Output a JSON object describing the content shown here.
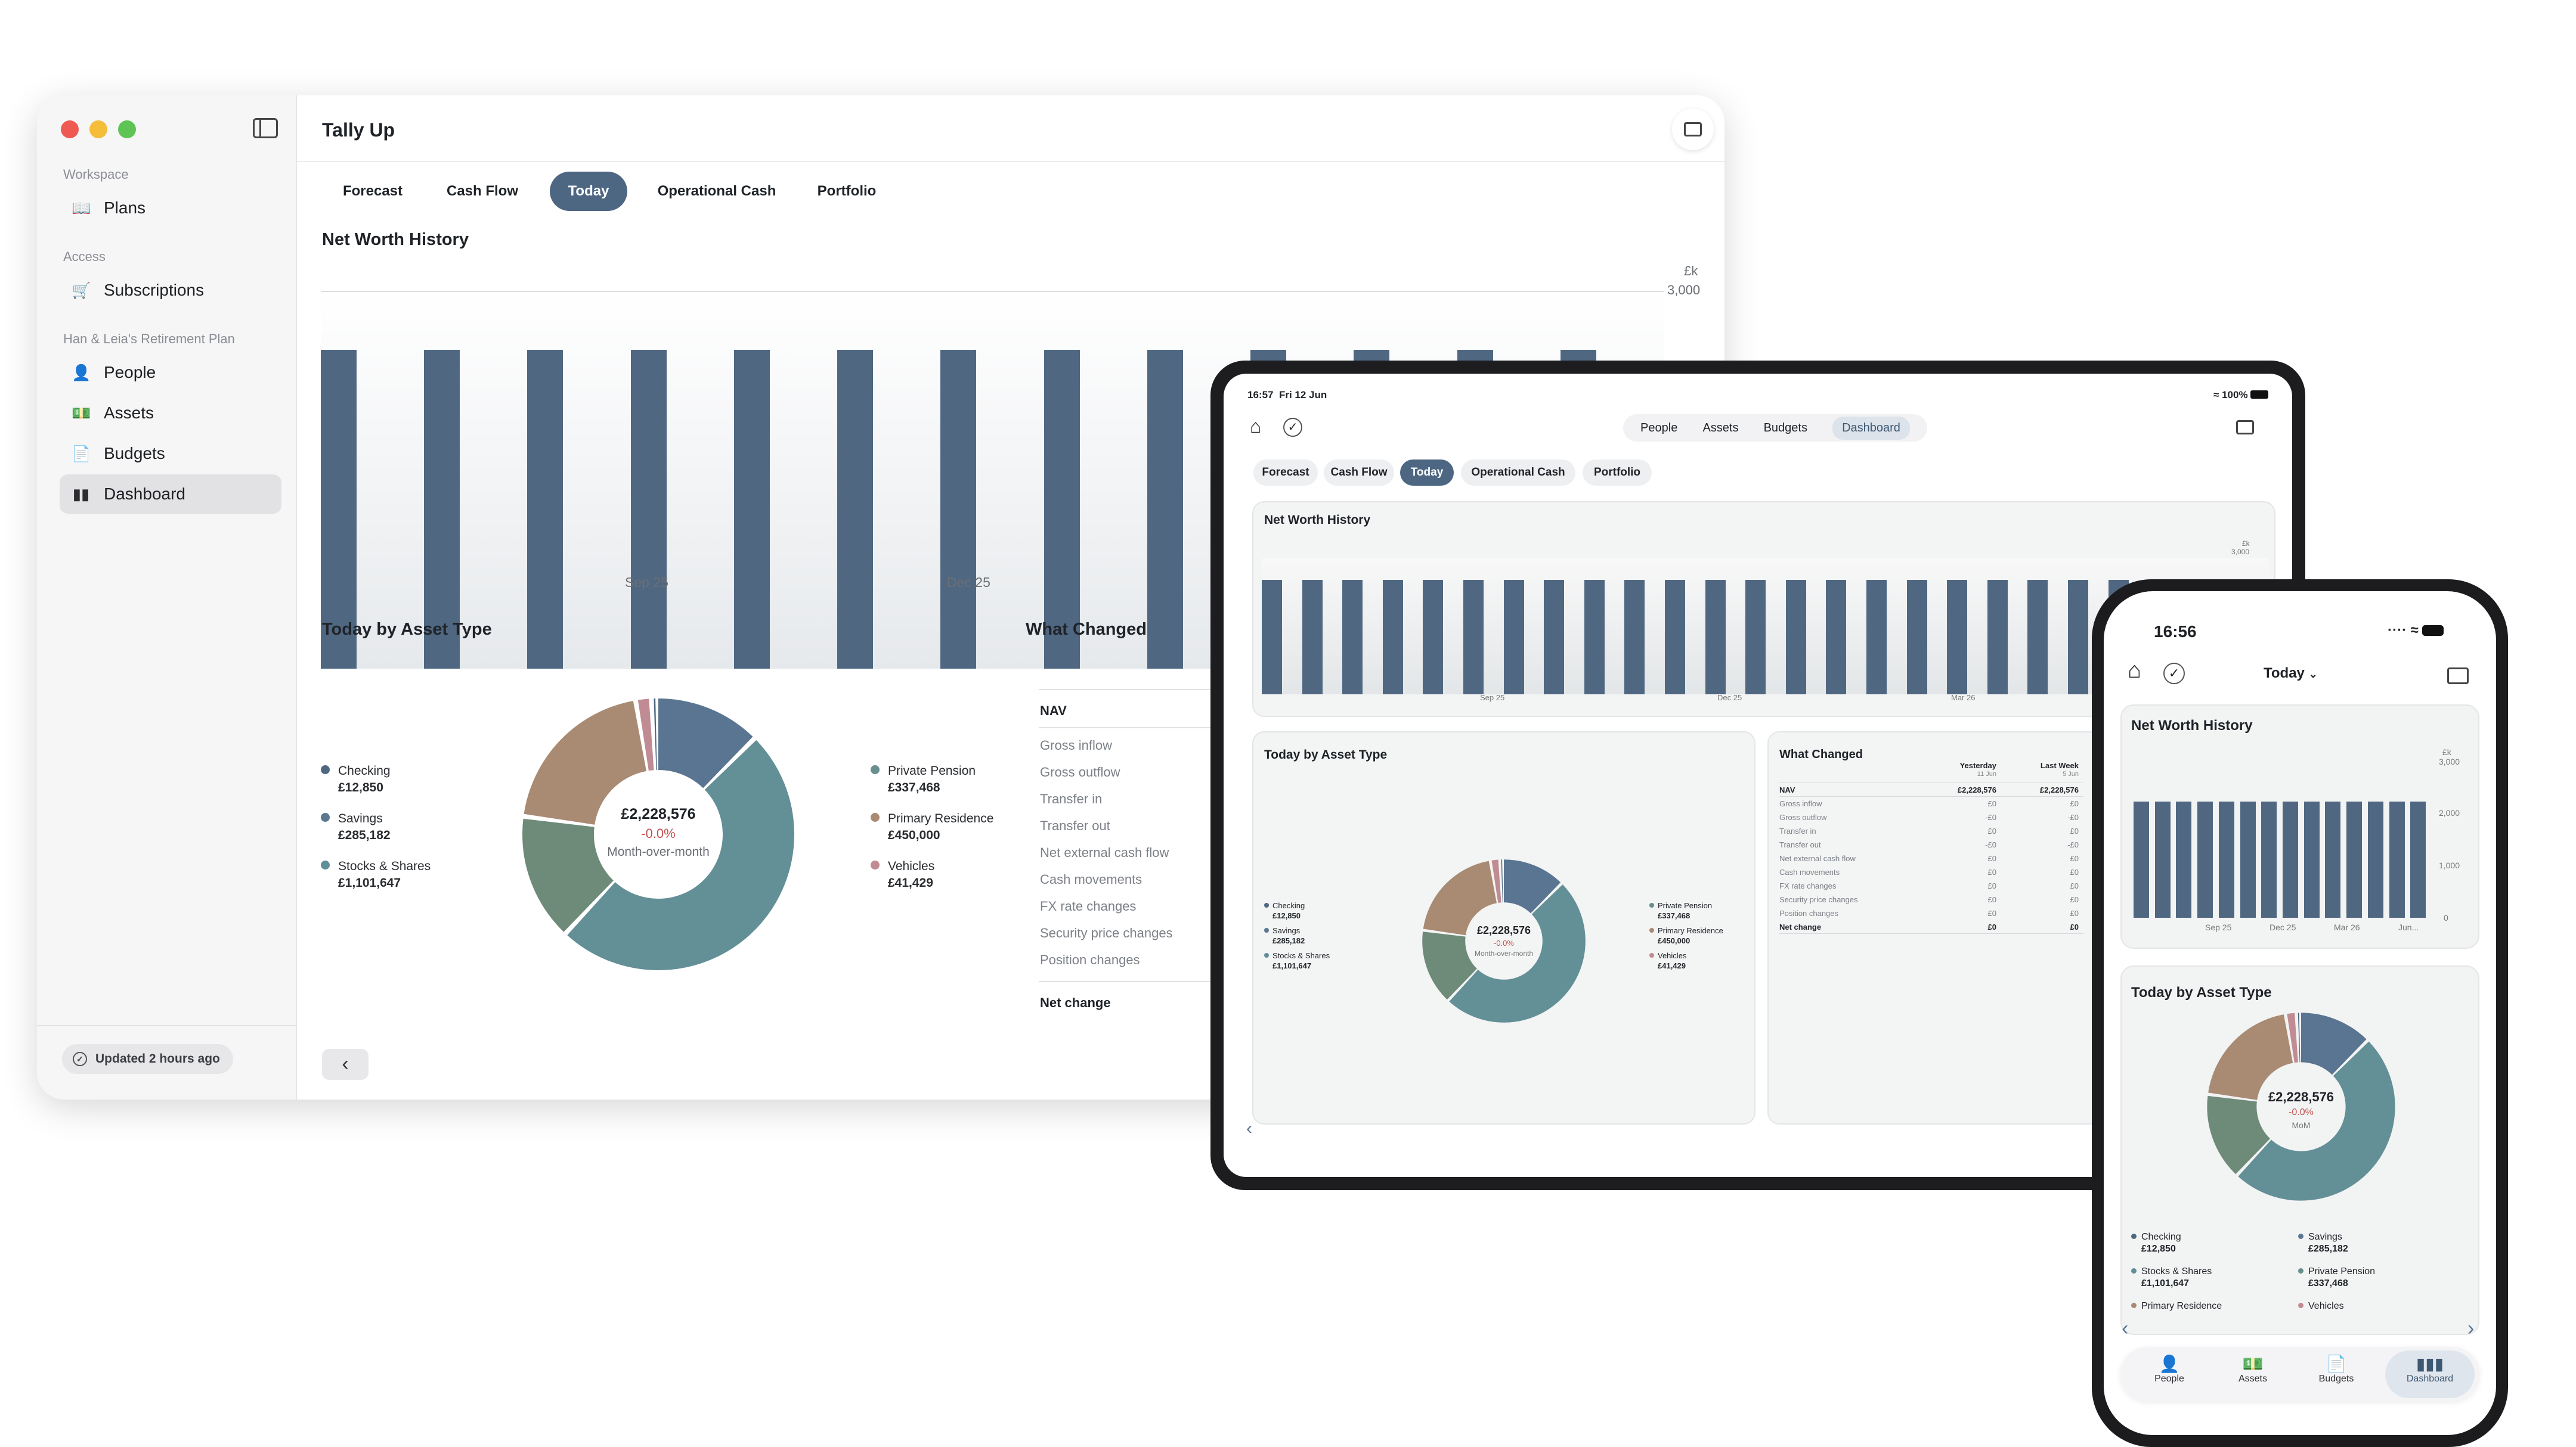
{
  "colors": {
    "accent": "#4d6783",
    "bar": "#4f6781",
    "checking": "#4f6781",
    "savings": "#8a6e8a",
    "stocks": "#5f8f98",
    "pension": "#688e8e",
    "residence": "#a98a73",
    "vehicles": "#c08b92",
    "negative": "#c0504d"
  },
  "desktop": {
    "app_title": "Tally Up",
    "sidebar": {
      "sections": [
        {
          "header": "Workspace",
          "items": [
            {
              "label": "Plans",
              "icon": "book-icon"
            }
          ]
        },
        {
          "header": "Access",
          "items": [
            {
              "label": "Subscriptions",
              "icon": "cart-icon"
            }
          ]
        },
        {
          "header": "Han & Leia's Retirement Plan",
          "items": [
            {
              "label": "People",
              "icon": "person-icon"
            },
            {
              "label": "Assets",
              "icon": "banknote-icon"
            },
            {
              "label": "Budgets",
              "icon": "document-icon"
            },
            {
              "label": "Dashboard",
              "icon": "chart-icon",
              "active": true
            }
          ]
        }
      ],
      "status": "Updated 2 hours ago"
    },
    "tabs": [
      "Forecast",
      "Cash Flow",
      "Today",
      "Operational Cash",
      "Portfolio"
    ],
    "active_tab": "Today",
    "net_worth": {
      "title": "Net Worth History",
      "unit": "£k",
      "ytick": "3,000",
      "xticks": [
        "Sep 25",
        "Dec 25"
      ]
    },
    "asset_type": {
      "title": "Today by Asset Type",
      "total": "£2,228,576",
      "change": "-0.0%",
      "caption": "Month-over-month"
    },
    "legend_left": [
      {
        "name": "Checking",
        "value": "£12,850"
      },
      {
        "name": "Savings",
        "value": "£285,182"
      },
      {
        "name": "Stocks & Shares",
        "value": "£1,101,647"
      }
    ],
    "legend_right": [
      {
        "name": "Private Pension",
        "value": "£337,468"
      },
      {
        "name": "Primary Residence",
        "value": "£450,000"
      },
      {
        "name": "Vehicles",
        "value": "£41,429"
      }
    ],
    "what_changed": {
      "title": "What Changed",
      "nav": "NAV",
      "rows": [
        "Gross inflow",
        "Gross outflow",
        "Transfer in",
        "Transfer out",
        "Net external cash flow",
        "Cash movements",
        "FX rate changes",
        "Security price changes",
        "Position changes"
      ],
      "net": "Net change"
    }
  },
  "tablet": {
    "status_time": "16:57",
    "status_date": "Fri 12 Jun",
    "battery": "100%",
    "seg": [
      "People",
      "Assets",
      "Budgets",
      "Dashboard"
    ],
    "seg_active": "Dashboard",
    "tabs": [
      "Forecast",
      "Cash Flow",
      "Today",
      "Operational Cash",
      "Portfolio"
    ],
    "net_worth": {
      "title": "Net Worth History",
      "unit": "£k",
      "ytick": "3,000",
      "xticks": [
        "Sep 25",
        "Dec 25",
        "Mar 26"
      ]
    },
    "asset_type": {
      "title": "Today by Asset Type",
      "total": "£2,228,576",
      "change": "-0.0%",
      "caption": "Month-over-month"
    },
    "legend_left": [
      {
        "name": "Checking",
        "value": "£12,850"
      },
      {
        "name": "Savings",
        "value": "£285,182"
      },
      {
        "name": "Stocks & Shares",
        "value": "£1,101,647"
      }
    ],
    "legend_right": [
      {
        "name": "Private Pension",
        "value": "£337,468"
      },
      {
        "name": "Primary Residence",
        "value": "£450,000"
      },
      {
        "name": "Vehicles",
        "value": "£41,429"
      }
    ],
    "what_changed": {
      "title": "What Changed",
      "col1": "Yesterday",
      "col1_sub": "11 Jun",
      "col2": "Last Week",
      "col2_sub": "5 Jun",
      "rows": [
        {
          "label": "NAV",
          "y": "£2,228,576",
          "w": "£2,228,576"
        },
        {
          "label": "Gross inflow",
          "y": "£0",
          "w": "£0"
        },
        {
          "label": "Gross outflow",
          "y": "-£0",
          "w": "-£0"
        },
        {
          "label": "Transfer in",
          "y": "£0",
          "w": "£0"
        },
        {
          "label": "Transfer out",
          "y": "-£0",
          "w": "-£0"
        },
        {
          "label": "Net external cash flow",
          "y": "£0",
          "w": "£0"
        },
        {
          "label": "Cash movements",
          "y": "£0",
          "w": "£0"
        },
        {
          "label": "FX rate changes",
          "y": "£0",
          "w": "£0"
        },
        {
          "label": "Security price changes",
          "y": "£0",
          "w": "£0"
        },
        {
          "label": "Position changes",
          "y": "£0",
          "w": "£0"
        },
        {
          "label": "Net change",
          "y": "£0",
          "w": "£0"
        }
      ]
    }
  },
  "phone": {
    "time": "16:56",
    "selector": "Today",
    "net_worth": {
      "title": "Net Worth History",
      "unit": "£k",
      "yticks": [
        "3,000",
        "2,000",
        "1,000",
        "0"
      ],
      "xticks": [
        "Sep 25",
        "Dec 25",
        "Mar 26",
        "Jun..."
      ]
    },
    "asset_type": {
      "title": "Today by Asset Type",
      "total": "£2,228,576",
      "change": "-0.0%",
      "caption": "MoM"
    },
    "legend": [
      {
        "name": "Checking",
        "value": "£12,850"
      },
      {
        "name": "Savings",
        "value": "£285,182"
      },
      {
        "name": "Stocks & Shares",
        "value": "£1,101,647"
      },
      {
        "name": "Private Pension",
        "value": "£337,468"
      },
      {
        "name": "Primary Residence",
        "value": ""
      },
      {
        "name": "Vehicles",
        "value": ""
      }
    ],
    "nav": [
      "People",
      "Assets",
      "Budgets",
      "Dashboard"
    ],
    "nav_active": "Dashboard"
  },
  "chart_data": [
    {
      "type": "bar",
      "title": "Net Worth History",
      "ylabel": "£k",
      "ylim": [
        0,
        3000
      ],
      "xticks": [
        "Sep 25",
        "Dec 25",
        "Mar 26"
      ],
      "values": [
        2228,
        2228,
        2228,
        2228,
        2228,
        2228,
        2228,
        2228,
        2228,
        2228,
        2228,
        2228,
        2228,
        2228
      ]
    },
    {
      "type": "pie",
      "title": "Today by Asset Type",
      "categories": [
        "Checking",
        "Savings",
        "Stocks & Shares",
        "Private Pension",
        "Primary Residence",
        "Vehicles"
      ],
      "values": [
        12850,
        285182,
        1101647,
        337468,
        450000,
        41429
      ]
    }
  ]
}
